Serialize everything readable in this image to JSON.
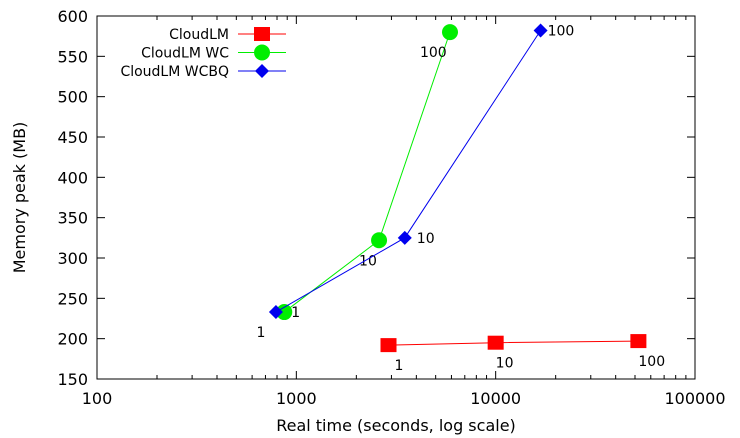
{
  "chart_data": {
    "type": "line",
    "xlabel": "Real time (seconds, log scale)",
    "ylabel": "Memory peak (MB)",
    "xscale": "log",
    "xlim": [
      100,
      100000
    ],
    "ylim": [
      150,
      600
    ],
    "x_ticks": [
      100,
      1000,
      10000,
      100000
    ],
    "x_tick_labels": [
      "100",
      "1000",
      "10000",
      "100000"
    ],
    "y_ticks": [
      150,
      200,
      250,
      300,
      350,
      400,
      450,
      500,
      550,
      600
    ],
    "y_tick_labels": [
      "150",
      "200",
      "250",
      "300",
      "350",
      "400",
      "450",
      "500",
      "550",
      "600"
    ],
    "legend_position": "top-left",
    "series": [
      {
        "name": "CloudLM",
        "color": "#ff0000",
        "marker": "square",
        "points": [
          {
            "x": 2900,
            "y": 192,
            "label": "1"
          },
          {
            "x": 10000,
            "y": 195,
            "label": "10"
          },
          {
            "x": 52000,
            "y": 197,
            "label": "100"
          }
        ]
      },
      {
        "name": "CloudLM WC",
        "color": "#00ee00",
        "marker": "circle",
        "points": [
          {
            "x": 870,
            "y": 233,
            "label": "1"
          },
          {
            "x": 2600,
            "y": 322,
            "label": "10"
          },
          {
            "x": 5900,
            "y": 580,
            "label": "100"
          }
        ]
      },
      {
        "name": "CloudLM WCBQ",
        "color": "#0000ee",
        "marker": "diamond",
        "points": [
          {
            "x": 790,
            "y": 233,
            "label": "1"
          },
          {
            "x": 3500,
            "y": 325,
            "label": "10"
          },
          {
            "x": 16800,
            "y": 582,
            "label": "100"
          }
        ]
      }
    ]
  }
}
